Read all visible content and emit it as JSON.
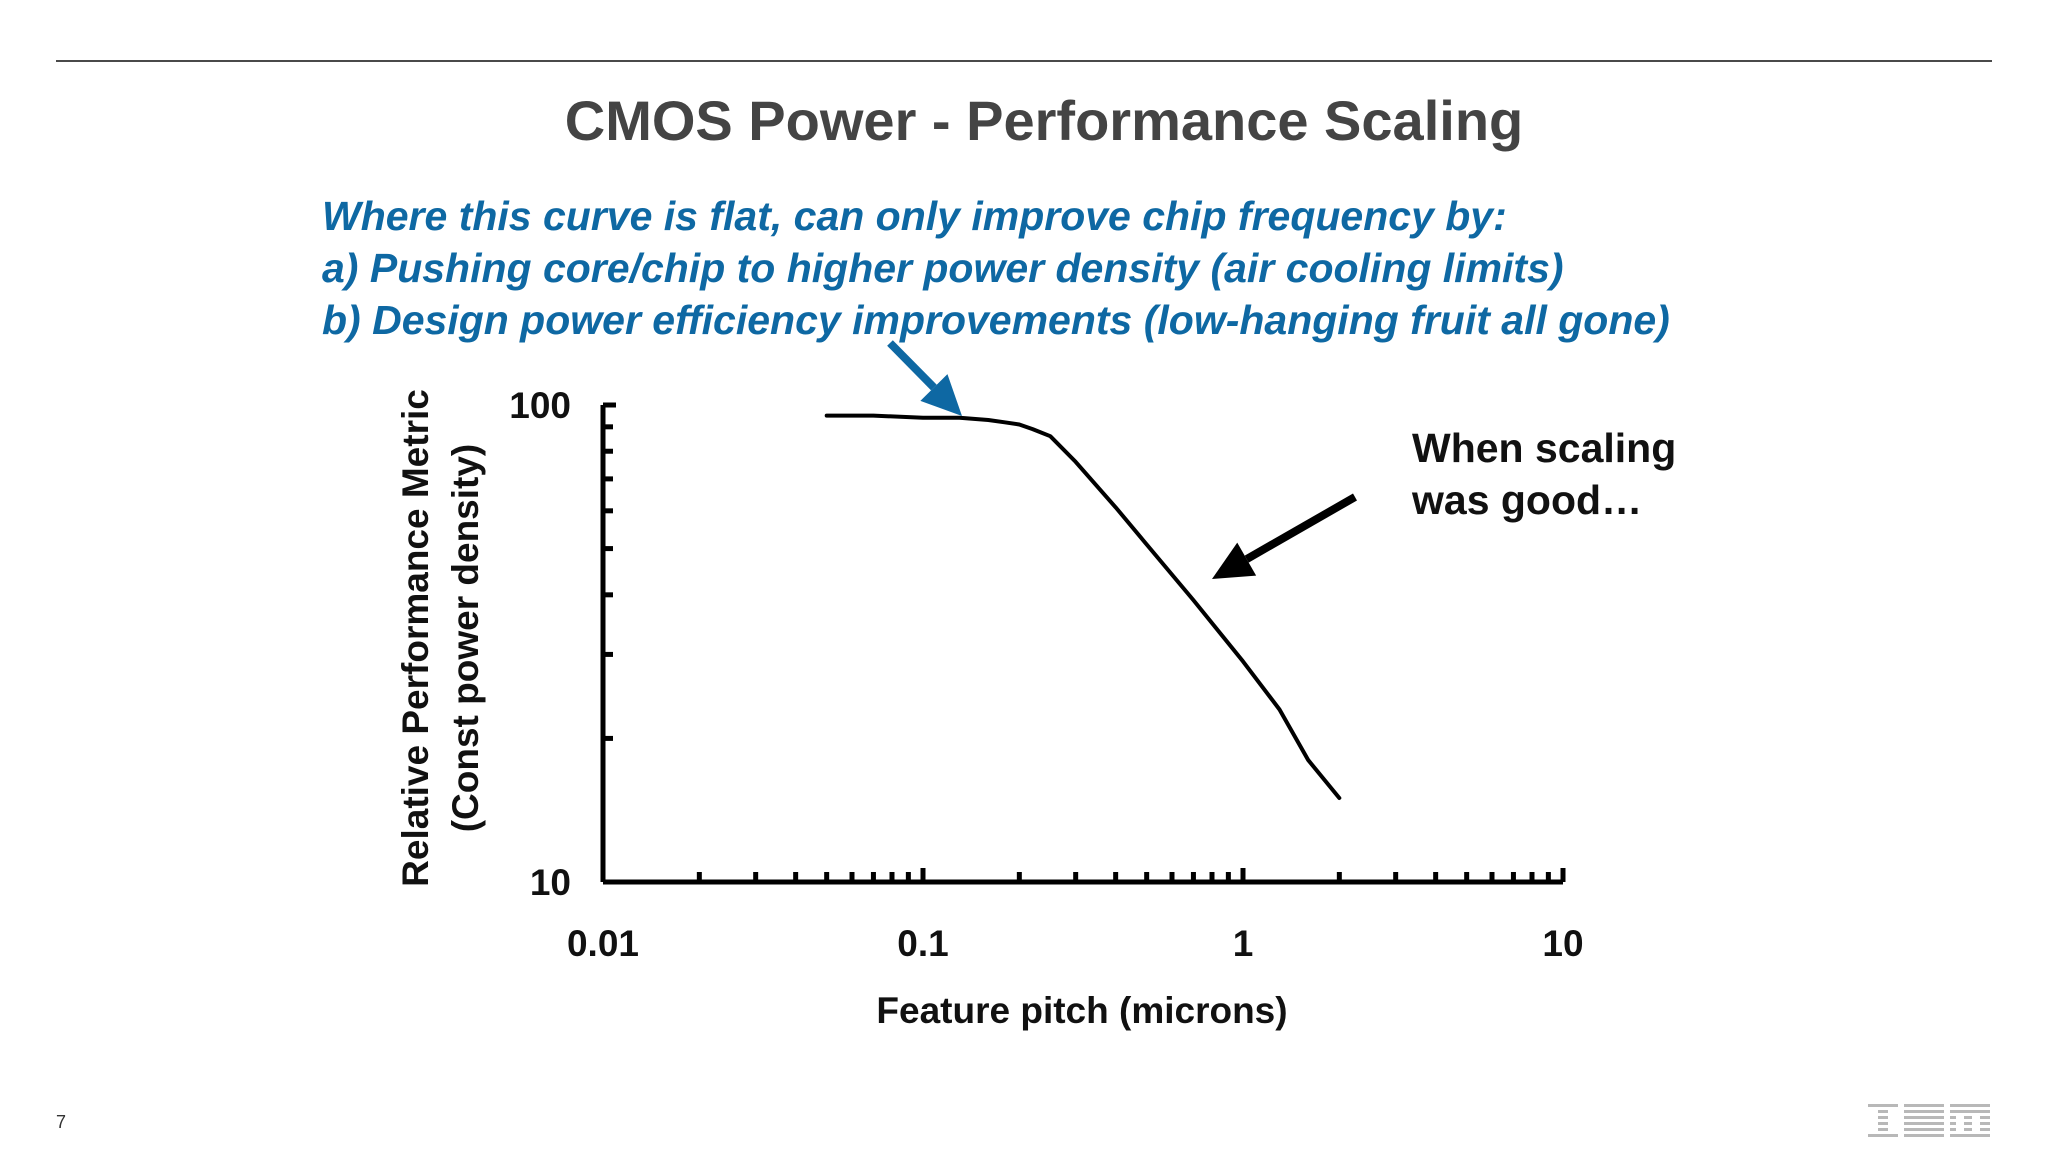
{
  "slide": {
    "title": "CMOS Power - Performance Scaling",
    "callout_lines": [
      "Where this curve is flat, can only improve chip frequency by:",
      "a) Pushing core/chip to higher power density (air cooling limits)",
      "b) Design power efficiency improvements (low-hanging fruit all gone)"
    ],
    "annotation_lines": [
      "When scaling",
      "was good…"
    ],
    "page_number": "7",
    "logo": "IBM"
  },
  "colors": {
    "title": "#444444",
    "callout": "#0e68a3",
    "curve": "#000000",
    "accent_arrow": "#0e68a3"
  },
  "chart_data": {
    "type": "line",
    "x_scale": "log",
    "y_scale": "log",
    "xlabel": "Feature pitch (microns)",
    "ylabel": "Relative Performance Metric",
    "ylabel_sub": "(Const power density)",
    "xlim": [
      0.01,
      10
    ],
    "ylim": [
      10,
      100
    ],
    "x_ticks": [
      "0.01",
      "0.1",
      "1",
      "10"
    ],
    "y_ticks": [
      "10",
      "100"
    ],
    "series": [
      {
        "x": [
          0.05,
          0.07,
          0.1,
          0.13,
          0.16,
          0.18,
          0.2,
          0.22,
          0.25,
          0.3,
          0.4,
          0.5,
          0.7,
          1.0,
          1.3,
          1.6,
          2.0
        ],
        "y": [
          95,
          95,
          94,
          94,
          93,
          92,
          91,
          89,
          86,
          76,
          61,
          51,
          39,
          29,
          23,
          18,
          15
        ]
      }
    ],
    "grid": false,
    "legend": "none"
  }
}
